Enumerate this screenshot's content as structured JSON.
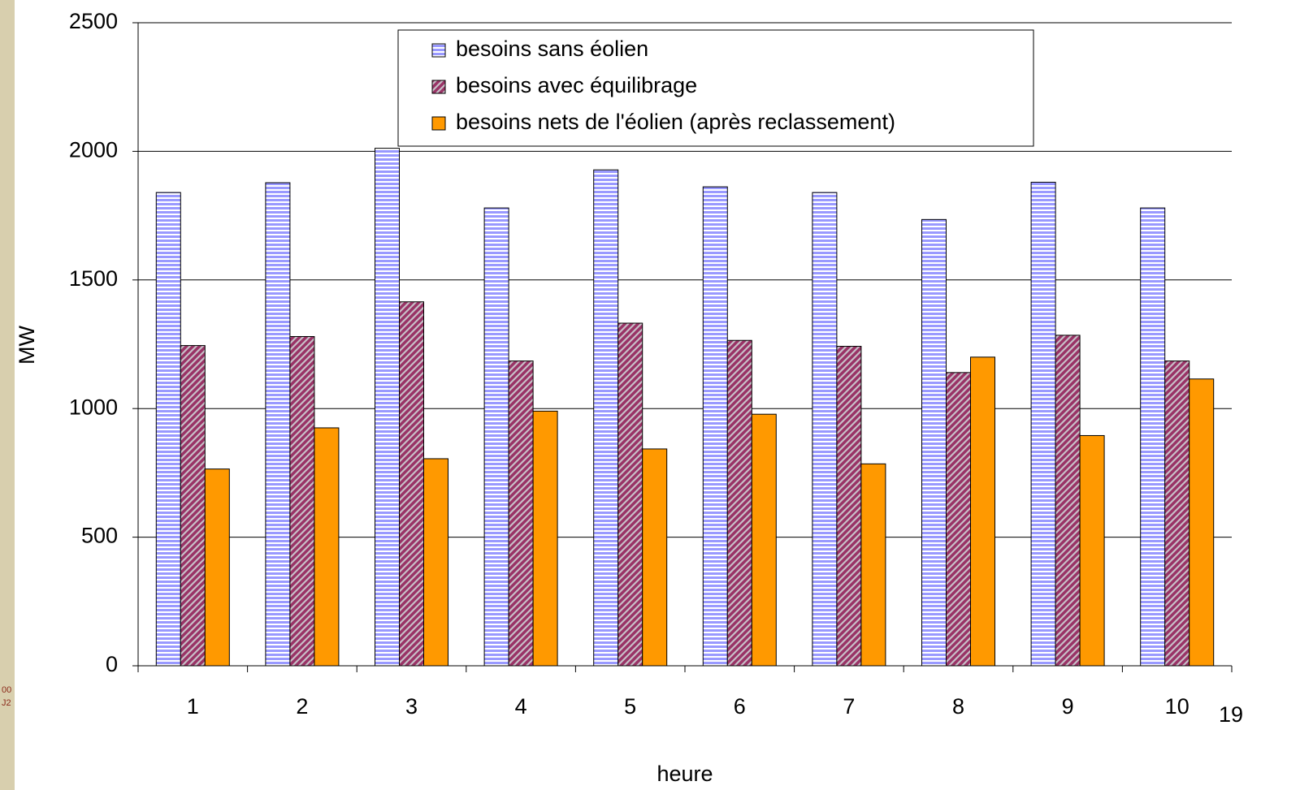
{
  "chart_data": {
    "type": "bar",
    "x_label": "heure",
    "y_label": "MW",
    "categories": [
      "1",
      "2",
      "3",
      "4",
      "5",
      "6",
      "7",
      "8",
      "9",
      "10"
    ],
    "series": [
      {
        "name": "besoins sans éolien",
        "color": "#9999ff",
        "pattern": "horizontal",
        "values": [
          1840,
          1878,
          2012,
          1780,
          1928,
          1862,
          1840,
          1735,
          1880,
          1780
        ]
      },
      {
        "name": "besoins avec équilibrage",
        "color": "#993366",
        "pattern": "diagonal",
        "values": [
          1245,
          1280,
          1415,
          1185,
          1332,
          1265,
          1242,
          1140,
          1285,
          1185
        ]
      },
      {
        "name": "besoins nets de l'éolien (après reclassement)",
        "color": "#ff9900",
        "pattern": "solid",
        "values": [
          765,
          925,
          805,
          990,
          843,
          978,
          785,
          1200,
          895,
          1115
        ]
      }
    ],
    "ylim": [
      0,
      2500
    ],
    "yticks": [
      0,
      500,
      1000,
      1500,
      2000,
      2500
    ],
    "grid": true,
    "legend": "top-center"
  },
  "slide": {
    "page_number": "19",
    "side_text": [
      "00",
      "J2"
    ]
  }
}
